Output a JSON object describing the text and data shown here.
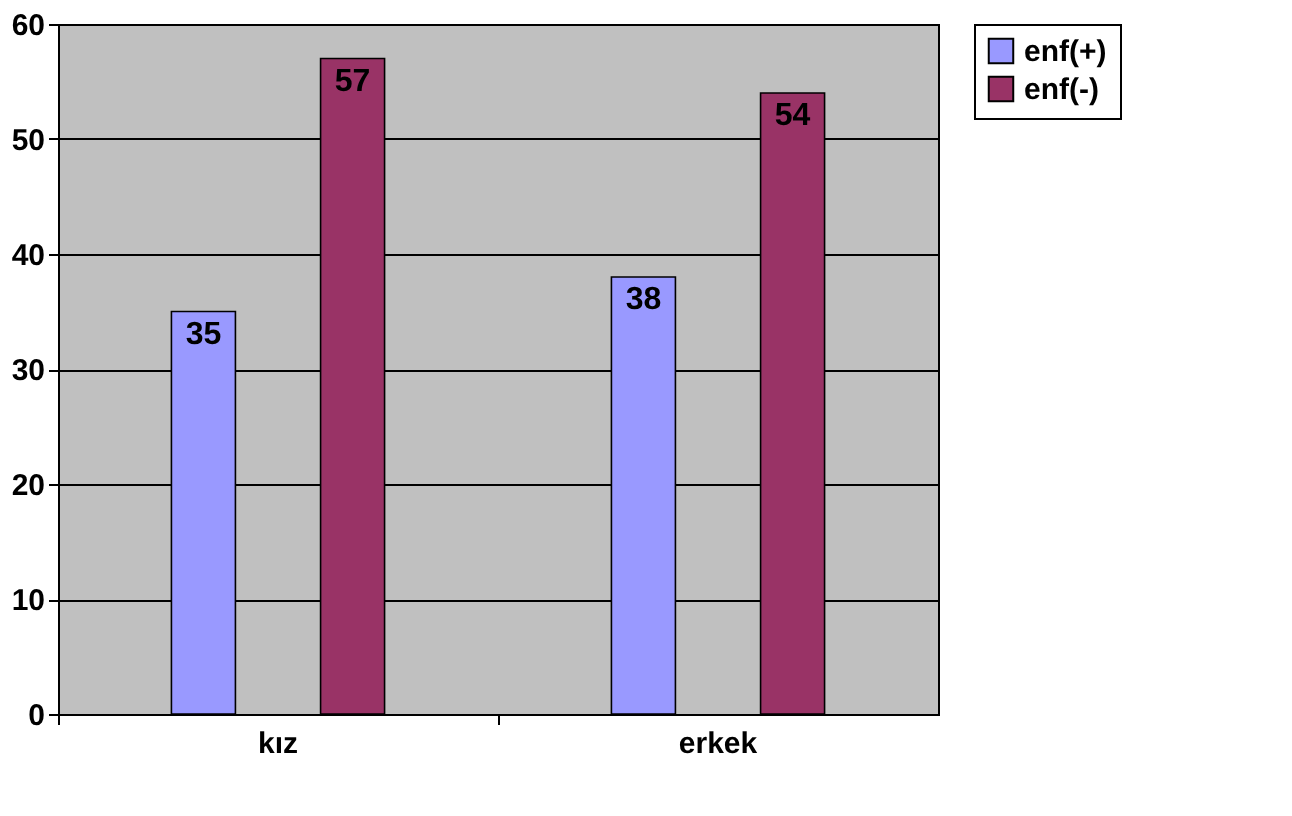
{
  "chart_data": {
    "type": "bar",
    "categories": [
      "kız",
      "erkek"
    ],
    "series": [
      {
        "name": "enf(+)",
        "color": "#9999ff",
        "values": [
          35,
          38
        ]
      },
      {
        "name": "enf(-)",
        "color": "#993366",
        "values": [
          57,
          54
        ]
      }
    ],
    "ylim": [
      0,
      60
    ],
    "yticks": [
      0,
      10,
      20,
      30,
      40,
      50,
      60
    ],
    "grid": "y",
    "legend": "right",
    "data_labels": true
  }
}
